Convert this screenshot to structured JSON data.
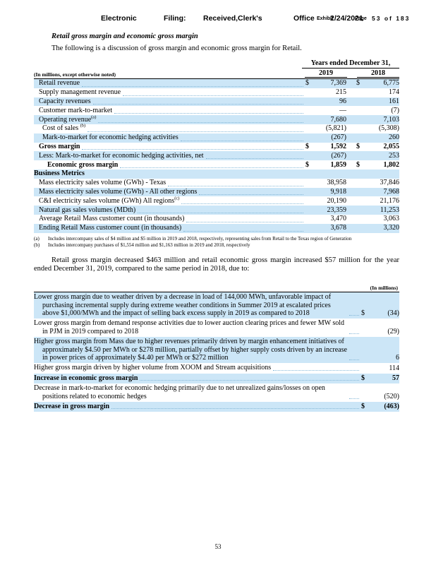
{
  "stamp": {
    "part1": "Electronic",
    "part2": "Filing:",
    "part3": "Received,Clerk's",
    "part4": "Office",
    "exhibit": "Exhibit",
    "date": "2/24/2021",
    "page_word": "Page",
    "page_info": "53 of 183"
  },
  "title": "Retail gross margin and economic gross margin",
  "intro": "The following is a discussion of gross margin and economic gross margin for Retail.",
  "colors": {
    "row_shading": "#cce6f7",
    "leader_dots": "#85b8d8"
  },
  "table1": {
    "caption": "Years ended December 31,",
    "note": "(In millions, except otherwise noted)",
    "year1": "2019",
    "year2": "2018",
    "rows": [
      {
        "label": "Retail revenue",
        "sup": "",
        "indent": 1,
        "shaded": true,
        "bold": false,
        "d1": "$",
        "v1": "7,369",
        "d2": "$",
        "v2": "6,775"
      },
      {
        "label": "Supply management revenue",
        "sup": "",
        "indent": 1,
        "shaded": false,
        "bold": false,
        "d1": "",
        "v1": "215",
        "d2": "",
        "v2": "174"
      },
      {
        "label": "Capacity revenues",
        "sup": "",
        "indent": 1,
        "shaded": true,
        "bold": false,
        "d1": "",
        "v1": "96",
        "d2": "",
        "v2": "161"
      },
      {
        "label": "Customer mark-to-market",
        "sup": "",
        "indent": 1,
        "shaded": false,
        "bold": false,
        "d1": "",
        "v1": "—",
        "d2": "",
        "v2": "(7)"
      },
      {
        "label": "Operating revenue",
        "sup": "(a)",
        "indent": 1,
        "shaded": true,
        "bold": false,
        "d1": "",
        "v1": "7,680",
        "d2": "",
        "v2": "7,103"
      },
      {
        "label": "Cost of sales ",
        "sup": "(b)",
        "indent": 2,
        "shaded": false,
        "bold": false,
        "d1": "",
        "v1": "(5,821)",
        "d2": "",
        "v2": "(5,308)"
      },
      {
        "label": "Mark-to-market for economic hedging activities",
        "sup": "",
        "indent": 2,
        "shaded": true,
        "bold": false,
        "d1": "",
        "v1": "(267)",
        "d2": "",
        "v2": "260"
      },
      {
        "label": "Gross margin",
        "sup": "",
        "indent": 1,
        "shaded": false,
        "bold": true,
        "d1": "$",
        "v1": "1,592",
        "d2": "$",
        "v2": "2,055"
      },
      {
        "label": "Less: Mark-to-market for economic hedging activities, net",
        "sup": "",
        "indent": 1,
        "shaded": true,
        "bold": false,
        "d1": "",
        "v1": "(267)",
        "d2": "",
        "v2": "253"
      },
      {
        "label": "Economic gross margin",
        "sup": "",
        "indent": 3,
        "shaded": false,
        "bold": true,
        "d1": "$",
        "v1": "1,859",
        "d2": "$",
        "v2": "1,802"
      },
      {
        "label": "Business Metrics",
        "sup": "",
        "indent": 0,
        "shaded": true,
        "bold": true,
        "d1": "",
        "v1": "",
        "d2": "",
        "v2": "",
        "leader": false
      },
      {
        "label": "Mass electricity sales volume (GWh) - Texas",
        "sup": "",
        "indent": 1,
        "shaded": false,
        "bold": false,
        "d1": "",
        "v1": "38,958",
        "d2": "",
        "v2": "37,846"
      },
      {
        "label": "Mass electricity sales volume (GWh) - All other regions",
        "sup": "",
        "indent": 1,
        "shaded": true,
        "bold": false,
        "d1": "",
        "v1": "9,918",
        "d2": "",
        "v2": "7,968"
      },
      {
        "label": "C&I electricity sales volume (GWh) All regions",
        "sup": "(c)",
        "indent": 1,
        "shaded": false,
        "bold": false,
        "d1": "",
        "v1": "20,190",
        "d2": "",
        "v2": "21,176"
      },
      {
        "label": "Natural gas sales volumes (MDth)",
        "sup": "",
        "indent": 1,
        "shaded": true,
        "bold": false,
        "d1": "",
        "v1": "23,359",
        "d2": "",
        "v2": "11,253"
      },
      {
        "label": "Average Retail Mass customer count (in thousands)",
        "sup": "",
        "indent": 1,
        "shaded": false,
        "bold": false,
        "d1": "",
        "v1": "3,470",
        "d2": "",
        "v2": "3,063"
      },
      {
        "label": "Ending Retail Mass customer count (in thousands)",
        "sup": "",
        "indent": 1,
        "shaded": true,
        "bold": false,
        "d1": "",
        "v1": "3,678",
        "d2": "",
        "v2": "3,320"
      }
    ]
  },
  "footnotes": [
    {
      "marker": "(a)",
      "text": "Includes intercompany sales of $4 million and $5 million in 2019 and 2018, respectively, representing sales from Retail to the Texas region of Generation"
    },
    {
      "marker": "(b)",
      "text": "Includes intercompany purchases of $1,554 million and $1,163 million in 2019 and 2018, respectively"
    }
  ],
  "paragraph": "Retail gross margin decreased $463 million and retail economic gross margin increased $57 million for the year ended December 31, 2019, compared to the same period in 2018, due to:",
  "table2": {
    "header": "(In millions)",
    "rows": [
      {
        "text": "Lower gross margin due to weather driven by a decrease in load of 144,000 MWh, unfavorable impact of purchasing incremental supply during extreme weather conditions in Summer 2019 at escalated prices above $1,000/MWh and the impact of selling back excess supply in 2019 as compared to 2018",
        "shaded": true,
        "bold": false,
        "d": "$",
        "v": "(34)"
      },
      {
        "text": "Lower gross margin from demand response activities due to lower auction clearing prices and fewer MW sold in PJM in 2019 compared to 2018",
        "shaded": false,
        "bold": false,
        "d": "",
        "v": "(29)"
      },
      {
        "text": "Higher gross margin from Mass due to higher revenues primarily driven by margin enhancement initiatives of approximately $4.50 per MWh or $278 million, partially offset by higher supply costs driven by an increase in power prices of approximately $4.40 per MWh or $272 million",
        "shaded": true,
        "bold": false,
        "d": "",
        "v": "6"
      },
      {
        "text": "Higher gross margin driven by higher volume from XOOM and Stream acquisitions",
        "shaded": false,
        "bold": false,
        "d": "",
        "v": "114"
      },
      {
        "text": "Increase in economic gross margin",
        "shaded": true,
        "bold": true,
        "d": "$",
        "v": "57"
      },
      {
        "text": "Decrease in mark-to-market for economic hedging primarily due to net unrealized gains/losses on open positions related to economic hedges",
        "shaded": false,
        "bold": false,
        "d": "",
        "v": "(520)"
      },
      {
        "text": "Decrease in gross margin",
        "shaded": true,
        "bold": true,
        "d": "$",
        "v": "(463)"
      }
    ]
  },
  "page_number": "53"
}
